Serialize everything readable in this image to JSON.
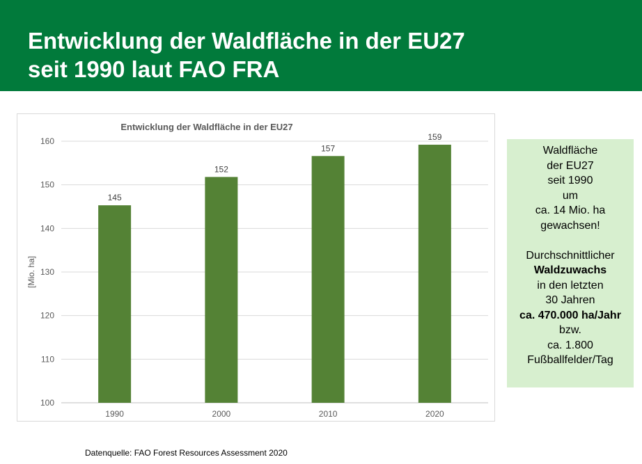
{
  "header": {
    "title_line1": "Entwicklung der Waldfläche in der EU27",
    "title_line2": "seit 1990 laut FAO FRA"
  },
  "chart_data": {
    "type": "bar",
    "title": "Entwicklung der Waldfläche in der EU27",
    "ylabel": "[Mio. ha]",
    "xlabel": "",
    "categories": [
      "1990",
      "2000",
      "2010",
      "2020"
    ],
    "values": [
      145.3,
      151.8,
      156.6,
      159.2
    ],
    "data_labels": [
      "145",
      "152",
      "157",
      "159"
    ],
    "ylim": [
      100,
      160
    ],
    "yticks": [
      100,
      110,
      120,
      130,
      140,
      150,
      160
    ],
    "grid": true,
    "legend": "none",
    "bar_color": "#548235"
  },
  "info": {
    "lines": [
      {
        "text": "Waldfläche",
        "bold": false
      },
      {
        "text": "der EU27",
        "bold": false
      },
      {
        "text": "seit 1990",
        "bold": false
      },
      {
        "text": "um",
        "bold": false
      },
      {
        "text": "ca. 14 Mio. ha",
        "bold": false
      },
      {
        "text": "gewachsen!",
        "bold": false
      },
      {
        "text": "",
        "bold": false
      },
      {
        "text": "Durchschnittlicher",
        "bold": false
      },
      {
        "text": "Waldzuwachs",
        "bold": true
      },
      {
        "text": "in den letzten",
        "bold": false
      },
      {
        "text": "30 Jahren",
        "bold": false
      },
      {
        "text": "ca. 470.000 ha/Jahr",
        "bold": true
      },
      {
        "text": "bzw.",
        "bold": false
      },
      {
        "text": "ca. 1.800",
        "bold": false
      },
      {
        "text": "Fußballfelder/Tag",
        "bold": false
      }
    ]
  },
  "footer": {
    "source": "Datenquelle: FAO Forest Resources Assessment 2020"
  },
  "colors": {
    "banner": "#017a3b",
    "bar": "#548235",
    "info_box": "#d7efcf"
  }
}
